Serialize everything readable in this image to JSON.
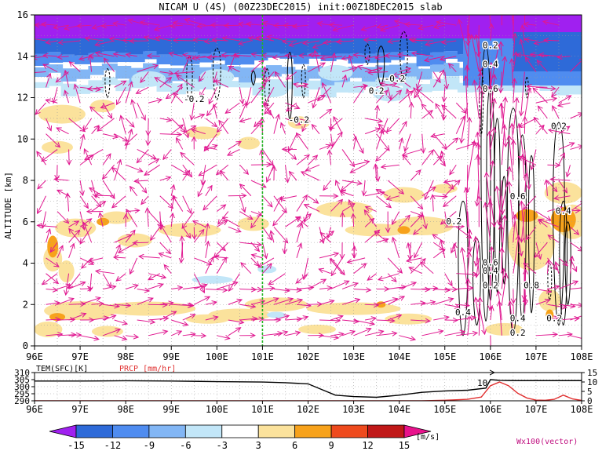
{
  "title": "NICAM U (4S) (00Z23DEC2015) init:00Z18DEC2015 slab",
  "chart_data": [
    {
      "type": "contour-section",
      "title": "NICAM U (4S) (00Z23DEC2015) init:00Z18DEC2015 slab",
      "ylabel": "ALTITUDE [km]",
      "xlim": [
        96,
        108
      ],
      "ylim": [
        0,
        16
      ],
      "x_ticks": [
        "96E",
        "97E",
        "98E",
        "99E",
        "100E",
        "101E",
        "102E",
        "103E",
        "104E",
        "105E",
        "106E",
        "107E",
        "108E"
      ],
      "y_ticks": [
        "0",
        "2",
        "4",
        "6",
        "8",
        "10",
        "12",
        "14",
        "16"
      ],
      "grid": true,
      "reference_line_lon": 101,
      "contour_labels": [
        {
          "text": "-0.2",
          "x": 99.5,
          "y": 11.9
        },
        {
          "text": "-0.2",
          "x": 101.8,
          "y": 10.9
        },
        {
          "text": "0.2",
          "x": 103.5,
          "y": 12.3
        },
        {
          "text": "-0.2",
          "x": 103.9,
          "y": 12.9
        },
        {
          "text": "0.2",
          "x": 106.0,
          "y": 14.5
        },
        {
          "text": "0.4",
          "x": 106.0,
          "y": 13.6
        },
        {
          "text": "0.6",
          "x": 106.0,
          "y": 12.4
        },
        {
          "text": "0.2",
          "x": 107.5,
          "y": 10.6
        },
        {
          "text": "0.6",
          "x": 106.6,
          "y": 7.2
        },
        {
          "text": "0.4",
          "x": 107.6,
          "y": 6.5
        },
        {
          "text": "0.2",
          "x": 105.2,
          "y": 6.0
        },
        {
          "text": "0.6",
          "x": 106.0,
          "y": 4.0
        },
        {
          "text": "0.4",
          "x": 106.0,
          "y": 3.6
        },
        {
          "text": "0.2",
          "x": 106.0,
          "y": 2.9
        },
        {
          "text": "0.8",
          "x": 106.9,
          "y": 2.9
        },
        {
          "text": "0.4",
          "x": 105.4,
          "y": 1.6
        },
        {
          "text": "0.4",
          "x": 106.6,
          "y": 1.3
        },
        {
          "text": "0.2",
          "x": 106.6,
          "y": 0.6
        },
        {
          "text": "0.2",
          "x": 107.4,
          "y": 1.3
        }
      ]
    },
    {
      "type": "line",
      "series": [
        {
          "name": "TEM(SFC)[K]",
          "color": "#000000",
          "axis": "left",
          "x": [
            96,
            97,
            98,
            99,
            100,
            101,
            101.5,
            102,
            102.3,
            102.6,
            103,
            103.5,
            104,
            104.5,
            105,
            105.5,
            105.9,
            106.0,
            106.2,
            106.5,
            107,
            107.5,
            108
          ],
          "y": [
            304,
            304,
            304.2,
            304,
            303.6,
            303.3,
            302.8,
            302,
            298,
            294,
            293,
            292.5,
            294,
            296,
            297,
            297.5,
            299,
            305,
            304.5,
            304.3,
            304.3,
            304.3,
            304.3
          ]
        },
        {
          "name": "PRCP [mm/hr]",
          "color": "#e03030",
          "axis": "right",
          "x": [
            96,
            104.5,
            105,
            105.5,
            105.8,
            106.0,
            106.2,
            106.4,
            106.6,
            106.8,
            107.0,
            107.2,
            107.4,
            107.6,
            107.8,
            108
          ],
          "y": [
            0,
            0,
            0.3,
            0.8,
            2,
            8,
            10,
            8,
            4,
            1.5,
            0.4,
            0.3,
            0.8,
            3,
            1,
            0.2
          ]
        }
      ],
      "left_ticks": [
        "310",
        "305",
        "300",
        "295",
        "290"
      ],
      "right_ticks": [
        "15",
        "10",
        "5",
        "0"
      ],
      "xlim": [
        96,
        108
      ],
      "left_ylim": [
        290,
        310
      ],
      "right_ylim": [
        0,
        15
      ],
      "x_ticks": [
        "96E",
        "97E",
        "98E",
        "99E",
        "100E",
        "101E",
        "102E",
        "103E",
        "104E",
        "105E",
        "106E",
        "107E",
        "108E"
      ],
      "annotation": "10"
    }
  ],
  "colorbar": {
    "levels": [
      "-15",
      "-12",
      "-9",
      "-6",
      "-3",
      "3",
      "6",
      "9",
      "12",
      "15"
    ],
    "colors": [
      "#a020f0",
      "#2e6ad8",
      "#4f8cf0",
      "#82b6f5",
      "#c2e6f8",
      "#ffffff",
      "#fbe29c",
      "#f7a21b",
      "#ee4a1d",
      "#c01818",
      "#e8128c"
    ],
    "unit": "[m/s]",
    "vector_label": "Wx100(vector)"
  }
}
